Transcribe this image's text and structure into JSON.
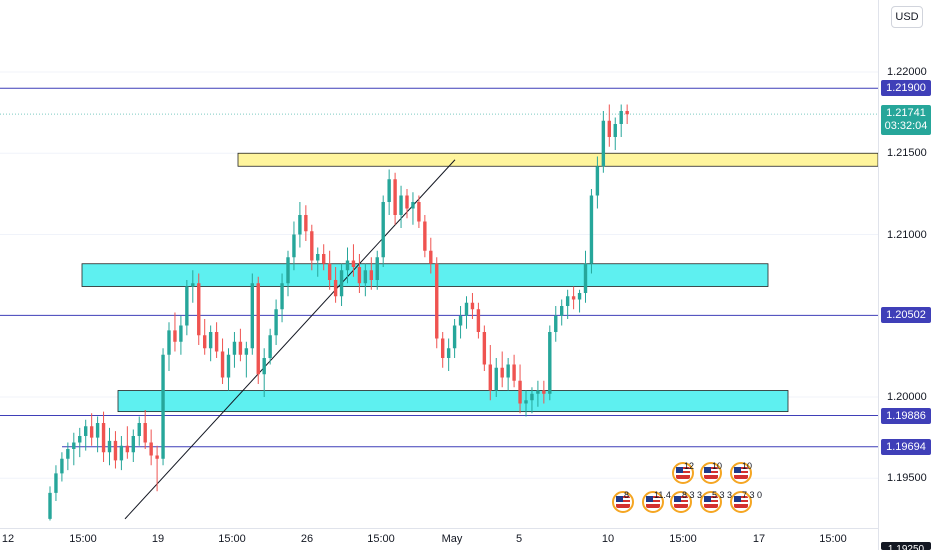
{
  "currency": "USD",
  "price_axis": {
    "ticks": [
      "1.22000",
      "1.21500",
      "1.21000",
      "1.20000",
      "1.19500"
    ],
    "tick_values": [
      1.22,
      1.215,
      1.21,
      1.2,
      1.195
    ],
    "last_price": "1.21741",
    "countdown": "03:32:04",
    "cut_label": "1.19250"
  },
  "time_axis": {
    "labels": [
      "12",
      "15:00",
      "19",
      "15:00",
      "26",
      "15:00",
      "May",
      "5",
      "10",
      "15:00",
      "17",
      "15:00"
    ]
  },
  "colors": {
    "up": "#26a69a",
    "down": "#ef5350",
    "level_line": "#3f3fb8",
    "supply_zone": "#fff59d",
    "demand_zone": "#5ef0f0",
    "last_price": "#26a69a"
  },
  "chart_data": {
    "type": "candlestick",
    "y_range": [
      1.1925,
      1.2235
    ],
    "horizontal_levels": [
      {
        "label": "1.21900",
        "value": 1.219
      },
      {
        "label": "1.20502",
        "value": 1.20502
      },
      {
        "label": "1.19886",
        "value": 1.19886
      },
      {
        "label": "1.19694",
        "value": 1.19694
      }
    ],
    "zones": [
      {
        "kind": "resistance",
        "low": 1.2142,
        "high": 1.215
      },
      {
        "kind": "support",
        "low": 1.2068,
        "high": 1.2082
      },
      {
        "kind": "support",
        "low": 1.1991,
        "high": 1.2004
      }
    ],
    "trendline": {
      "from": 1.1925,
      "to": 1.2146
    },
    "candles": [
      [
        1.1925,
        1.1945,
        1.1924,
        1.1941
      ],
      [
        1.1941,
        1.1958,
        1.1936,
        1.1953
      ],
      [
        1.1953,
        1.1966,
        1.1948,
        1.1962
      ],
      [
        1.1962,
        1.1972,
        1.1955,
        1.1968
      ],
      [
        1.1968,
        1.1978,
        1.1958,
        1.1972
      ],
      [
        1.1972,
        1.1981,
        1.1963,
        1.1976
      ],
      [
        1.1976,
        1.1986,
        1.1967,
        1.1982
      ],
      [
        1.1982,
        1.199,
        1.197,
        1.1975
      ],
      [
        1.1975,
        1.1988,
        1.1966,
        1.1984
      ],
      [
        1.1984,
        1.1991,
        1.196,
        1.1966
      ],
      [
        1.1966,
        1.1981,
        1.1958,
        1.1973
      ],
      [
        1.1973,
        1.1979,
        1.1956,
        1.1961
      ],
      [
        1.1961,
        1.1976,
        1.1955,
        1.197
      ],
      [
        1.197,
        1.1982,
        1.1962,
        1.1966
      ],
      [
        1.1966,
        1.198,
        1.196,
        1.1976
      ],
      [
        1.1976,
        1.1988,
        1.197,
        1.1984
      ],
      [
        1.1984,
        1.1992,
        1.1968,
        1.1972
      ],
      [
        1.1972,
        1.198,
        1.1958,
        1.1964
      ],
      [
        1.1964,
        1.197,
        1.1942,
        1.1962
      ],
      [
        1.1962,
        1.203,
        1.1958,
        1.2026
      ],
      [
        1.2026,
        1.2046,
        1.2016,
        1.2041
      ],
      [
        1.2041,
        1.2052,
        1.2028,
        1.2034
      ],
      [
        1.2034,
        1.205,
        1.2026,
        1.2044
      ],
      [
        1.2044,
        1.2072,
        1.2038,
        1.2068
      ],
      [
        1.2068,
        1.2078,
        1.2058,
        1.207
      ],
      [
        1.207,
        1.2076,
        1.2032,
        1.2038
      ],
      [
        1.2038,
        1.2048,
        1.2026,
        1.203
      ],
      [
        1.203,
        1.2044,
        1.2022,
        1.204
      ],
      [
        1.204,
        1.2046,
        1.2024,
        1.2028
      ],
      [
        1.2028,
        1.2036,
        1.2008,
        1.2012
      ],
      [
        1.2012,
        1.203,
        1.2004,
        1.2026
      ],
      [
        1.2026,
        1.204,
        1.2018,
        1.2034
      ],
      [
        1.2034,
        1.2042,
        1.2022,
        1.2026
      ],
      [
        1.2026,
        1.2034,
        1.2012,
        1.203
      ],
      [
        1.203,
        1.2076,
        1.2026,
        1.207
      ],
      [
        1.207,
        1.2074,
        1.2008,
        1.2014
      ],
      [
        1.2014,
        1.203,
        1.2,
        1.2024
      ],
      [
        1.2024,
        1.2042,
        1.202,
        1.2038
      ],
      [
        1.2038,
        1.206,
        1.2032,
        1.2054
      ],
      [
        1.2054,
        1.2076,
        1.2046,
        1.207
      ],
      [
        1.207,
        1.209,
        1.2062,
        1.2086
      ],
      [
        1.2086,
        1.2108,
        1.2078,
        1.21
      ],
      [
        1.21,
        1.212,
        1.2092,
        1.2112
      ],
      [
        1.2112,
        1.2118,
        1.2096,
        1.2102
      ],
      [
        1.2102,
        1.2106,
        1.2078,
        1.2084
      ],
      [
        1.2084,
        1.2092,
        1.2074,
        1.2088
      ],
      [
        1.2088,
        1.2094,
        1.2078,
        1.2082
      ],
      [
        1.2082,
        1.209,
        1.2066,
        1.2072
      ],
      [
        1.2072,
        1.208,
        1.2058,
        1.2062
      ],
      [
        1.2062,
        1.2082,
        1.2056,
        1.2078
      ],
      [
        1.2078,
        1.2092,
        1.207,
        1.2084
      ],
      [
        1.2084,
        1.2094,
        1.2074,
        1.208
      ],
      [
        1.208,
        1.2088,
        1.2064,
        1.207
      ],
      [
        1.207,
        1.2082,
        1.2062,
        1.2078
      ],
      [
        1.2078,
        1.2086,
        1.2066,
        1.2072
      ],
      [
        1.2072,
        1.209,
        1.2066,
        1.2086
      ],
      [
        1.2086,
        1.2124,
        1.208,
        1.212
      ],
      [
        1.212,
        1.214,
        1.2112,
        1.2134
      ],
      [
        1.2134,
        1.2138,
        1.2106,
        1.2112
      ],
      [
        1.2112,
        1.213,
        1.2104,
        1.2124
      ],
      [
        1.2124,
        1.2128,
        1.211,
        1.2116
      ],
      [
        1.2116,
        1.2126,
        1.2106,
        1.212
      ],
      [
        1.212,
        1.2124,
        1.2104,
        1.2108
      ],
      [
        1.2108,
        1.2112,
        1.2086,
        1.209
      ],
      [
        1.209,
        1.2098,
        1.2076,
        1.2082
      ],
      [
        1.2082,
        1.2086,
        1.203,
        1.2036
      ],
      [
        1.2036,
        1.204,
        1.2018,
        1.2024
      ],
      [
        1.2024,
        1.2036,
        1.2016,
        1.203
      ],
      [
        1.203,
        1.2048,
        1.2024,
        1.2044
      ],
      [
        1.2044,
        1.2056,
        1.2036,
        1.205
      ],
      [
        1.205,
        1.2062,
        1.2042,
        1.2058
      ],
      [
        1.2058,
        1.2064,
        1.2048,
        1.2054
      ],
      [
        1.2054,
        1.2058,
        1.2036,
        1.204
      ],
      [
        1.204,
        1.2044,
        1.2016,
        1.202
      ],
      [
        1.202,
        1.2032,
        1.1998,
        1.2004
      ],
      [
        1.2004,
        1.2024,
        1.2,
        1.2018
      ],
      [
        1.2018,
        1.2028,
        1.2006,
        1.2012
      ],
      [
        1.2012,
        1.2024,
        1.2004,
        1.202
      ],
      [
        1.202,
        1.2026,
        1.2006,
        1.201
      ],
      [
        1.201,
        1.202,
        1.199,
        1.1996
      ],
      [
        1.1996,
        1.2004,
        1.1988,
        1.1998
      ],
      [
        1.1998,
        1.2006,
        1.199,
        1.2002
      ],
      [
        1.2002,
        1.201,
        1.1994,
        1.2004
      ],
      [
        1.2004,
        1.201,
        1.1996,
        1.2002
      ],
      [
        1.2002,
        1.2044,
        1.1998,
        1.204
      ],
      [
        1.204,
        1.2056,
        1.2034,
        1.205
      ],
      [
        1.205,
        1.206,
        1.2044,
        1.2056
      ],
      [
        1.2056,
        1.2066,
        1.2048,
        1.2062
      ],
      [
        1.2062,
        1.2068,
        1.2054,
        1.206
      ],
      [
        1.206,
        1.2066,
        1.2052,
        1.2064
      ],
      [
        1.2064,
        1.209,
        1.2058,
        1.2082
      ],
      [
        1.2082,
        1.2128,
        1.2076,
        1.2124
      ],
      [
        1.2124,
        1.2148,
        1.2116,
        1.2142
      ],
      [
        1.2142,
        1.2176,
        1.2138,
        1.217
      ],
      [
        1.217,
        1.218,
        1.2154,
        1.216
      ],
      [
        1.216,
        1.2172,
        1.2152,
        1.2168
      ],
      [
        1.2168,
        1.218,
        1.216,
        1.2176
      ],
      [
        1.2176,
        1.218,
        1.2168,
        1.2174
      ]
    ]
  },
  "events": {
    "top_row_counts": [
      "12",
      "10",
      "10"
    ],
    "bottom_row_counts": [
      "8",
      "11.4",
      "8 3 3",
      "5 3 3",
      "7 3 0"
    ]
  }
}
